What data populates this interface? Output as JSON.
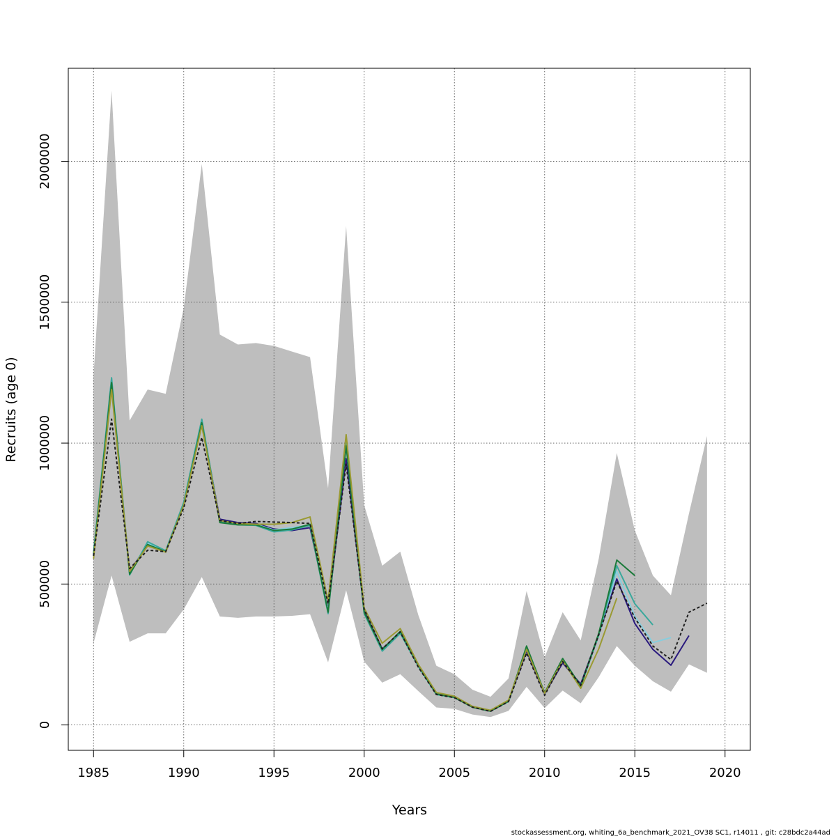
{
  "chart_data": {
    "type": "line",
    "title": "",
    "xlabel": "Years",
    "ylabel": "Recruits (age 0)",
    "xlim": [
      1983.6,
      2021.4
    ],
    "ylim": [
      -90000,
      2330000
    ],
    "x_ticks": [
      1985,
      1990,
      1995,
      2000,
      2005,
      2010,
      2015,
      2020
    ],
    "x_tick_labels": [
      "1985",
      "1990",
      "1995",
      "2000",
      "2005",
      "2010",
      "2015",
      "2020"
    ],
    "y_ticks": [
      0,
      500000,
      1000000,
      1500000,
      2000000
    ],
    "y_tick_labels": [
      "0",
      "500000",
      "1000000",
      "1500000",
      "2000000"
    ],
    "grid": true,
    "band": {
      "color": "#bebebe",
      "x": [
        1985,
        1986,
        1987,
        1988,
        1989,
        1990,
        1991,
        1992,
        1993,
        1994,
        1995,
        1996,
        1997,
        1998,
        1999,
        2000,
        2001,
        2002,
        2003,
        2004,
        2005,
        2006,
        2007,
        2008,
        2009,
        2010,
        2011,
        2012,
        2013,
        2014,
        2015,
        2016,
        2017,
        2018,
        2019
      ],
      "upper": [
        1240000,
        2250000,
        1080000,
        1190000,
        1175000,
        1480000,
        1990000,
        1385000,
        1350000,
        1355000,
        1345000,
        1325000,
        1305000,
        840000,
        1770000,
        780000,
        565000,
        615000,
        390000,
        210000,
        180000,
        125000,
        100000,
        165000,
        475000,
        240000,
        400000,
        300000,
        590000,
        965000,
        690000,
        530000,
        460000,
        750000,
        1025000
      ],
      "lower": [
        290000,
        530000,
        295000,
        325000,
        325000,
        410000,
        525000,
        385000,
        380000,
        385000,
        385000,
        387000,
        393000,
        222000,
        478000,
        225000,
        150000,
        180000,
        120000,
        62000,
        57000,
        37000,
        28000,
        50000,
        135000,
        60000,
        122000,
        77000,
        170000,
        280000,
        210000,
        155000,
        118000,
        215000,
        185000
      ]
    },
    "series": [
      {
        "color": "#1f1f1f",
        "dashed": true,
        "x": [
          1985,
          1986,
          1987,
          1988,
          1989,
          1990,
          1991,
          1992,
          1993,
          1994,
          1995,
          1996,
          1997,
          1998,
          1999,
          2000,
          2001,
          2002,
          2003,
          2004,
          2005,
          2006,
          2007,
          2008,
          2009,
          2010,
          2011,
          2012,
          2013,
          2014,
          2015,
          2016,
          2017,
          2018,
          2019
        ],
        "values": [
          600000,
          1085000,
          555000,
          620000,
          615000,
          770000,
          1020000,
          725000,
          715000,
          722000,
          720000,
          718000,
          715000,
          430000,
          925000,
          410000,
          270000,
          330000,
          205000,
          108000,
          97000,
          63000,
          48000,
          83000,
          255000,
          105000,
          225000,
          140000,
          320000,
          510000,
          380000,
          280000,
          232000,
          400000,
          432000
        ]
      },
      {
        "color": "#2a1a7e",
        "dashed": false,
        "x": [
          1985,
          1986,
          1987,
          1988,
          1989,
          1990,
          1991,
          1992,
          1993,
          1994,
          1995,
          1996,
          1997,
          1998,
          1999,
          2000,
          2001,
          2002,
          2003,
          2004,
          2005,
          2006,
          2007,
          2008,
          2009,
          2010,
          2011,
          2012,
          2013,
          2014,
          2015,
          2016,
          2017,
          2018
        ],
        "values": [
          605000,
          1205000,
          545000,
          640000,
          615000,
          785000,
          1075000,
          730000,
          718000,
          715000,
          695000,
          690000,
          700000,
          410000,
          945000,
          405000,
          270000,
          328000,
          208000,
          110000,
          98000,
          64000,
          50000,
          84000,
          262000,
          110000,
          220000,
          145000,
          322000,
          518000,
          360000,
          268000,
          212000,
          317000
        ]
      },
      {
        "color": "#87cede",
        "dashed": false,
        "x": [
          1985,
          1986,
          1987,
          1988,
          1989,
          1990,
          1991,
          1992,
          1993,
          1994,
          1995,
          1996,
          1997,
          1998,
          1999,
          2000,
          2001,
          2002,
          2003,
          2004,
          2005,
          2006,
          2007,
          2008,
          2009,
          2010,
          2011,
          2012,
          2013,
          2014,
          2015,
          2016,
          2017
        ],
        "values": [
          605000,
          1225000,
          540000,
          645000,
          618000,
          785000,
          1080000,
          722000,
          713000,
          712000,
          692000,
          700000,
          710000,
          405000,
          990000,
          400000,
          265000,
          330000,
          210000,
          109000,
          98000,
          64000,
          50000,
          83000,
          270000,
          112000,
          228000,
          137000,
          320000,
          545000,
          385000,
          292000,
          310000
        ]
      },
      {
        "color": "#3aa89c",
        "dashed": false,
        "x": [
          1985,
          1986,
          1987,
          1988,
          1989,
          1990,
          1991,
          1992,
          1993,
          1994,
          1995,
          1996,
          1997,
          1998,
          1999,
          2000,
          2001,
          2002,
          2003,
          2004,
          2005,
          2006,
          2007,
          2008,
          2009,
          2010,
          2011,
          2012,
          2013,
          2014,
          2015,
          2016
        ],
        "values": [
          610000,
          1232000,
          532000,
          650000,
          618000,
          790000,
          1085000,
          720000,
          710000,
          708000,
          685000,
          692000,
          708000,
          395000,
          1000000,
          395000,
          262000,
          325000,
          208000,
          108000,
          97000,
          63000,
          49000,
          83000,
          276000,
          113000,
          232000,
          137000,
          318000,
          565000,
          430000,
          355000
        ]
      },
      {
        "color": "#1b7a3a",
        "dashed": false,
        "x": [
          1985,
          1986,
          1987,
          1988,
          1989,
          1990,
          1991,
          1992,
          1993,
          1994,
          1995,
          1996,
          1997,
          1998,
          1999,
          2000,
          2001,
          2002,
          2003,
          2004,
          2005,
          2006,
          2007,
          2008,
          2009,
          2010,
          2011,
          2012,
          2013,
          2014,
          2015
        ],
        "values": [
          600000,
          1215000,
          535000,
          640000,
          615000,
          780000,
          1072000,
          718000,
          710000,
          710000,
          690000,
          695000,
          712000,
          400000,
          990000,
          400000,
          268000,
          332000,
          212000,
          110000,
          98000,
          63000,
          49000,
          84000,
          280000,
          114000,
          236000,
          138000,
          325000,
          585000,
          530000
        ]
      },
      {
        "color": "#9a9a32",
        "dashed": false,
        "x": [
          1985,
          1986,
          1987,
          1988,
          1989,
          1990,
          1991,
          1992,
          1993,
          1994,
          1995,
          1996,
          1997,
          1998,
          1999,
          2000,
          2001,
          2002,
          2003,
          2004,
          2005,
          2006,
          2007,
          2008,
          2009,
          2010,
          2011,
          2012,
          2013,
          2014
        ],
        "values": [
          590000,
          1190000,
          545000,
          635000,
          613000,
          780000,
          1062000,
          725000,
          715000,
          712000,
          712000,
          718000,
          738000,
          440000,
          1030000,
          415000,
          290000,
          342000,
          215000,
          115000,
          102000,
          66000,
          52000,
          88000,
          268000,
          112000,
          228000,
          130000,
          270000,
          450000
        ]
      }
    ]
  },
  "footer": "stockassessment.org, whiting_6a_benchmark_2021_OV38   SC1, r14011 , git: c28bdc2a44ad"
}
